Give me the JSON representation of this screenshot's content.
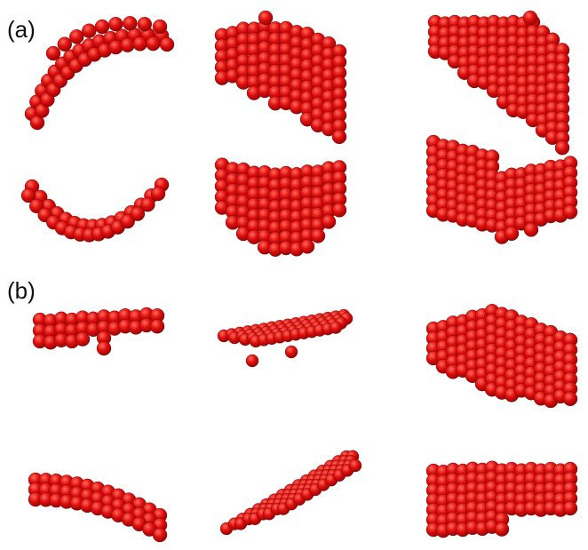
{
  "panels": [
    {
      "label": "(a)",
      "clusters": [
        {
          "name": "open-arc-upper"
        },
        {
          "name": "curved-sheet-upper"
        },
        {
          "name": "curved-slab-upper"
        },
        {
          "name": "open-arc-lower"
        },
        {
          "name": "curved-sheet-lower"
        },
        {
          "name": "curved-slab-lower"
        }
      ]
    },
    {
      "label": "(b)",
      "clusters": [
        {
          "name": "flat-sheet-upper"
        },
        {
          "name": "tilted-layer-upper"
        },
        {
          "name": "thick-slab-upper"
        },
        {
          "name": "flat-sheet-lower"
        },
        {
          "name": "tilted-layer-lower"
        },
        {
          "name": "thick-slab-lower"
        }
      ]
    }
  ],
  "colors": {
    "atom": "#e01010",
    "atom_highlight": "#ff6a5a",
    "atom_shadow": "#8a0000",
    "background": "#ffffff"
  }
}
